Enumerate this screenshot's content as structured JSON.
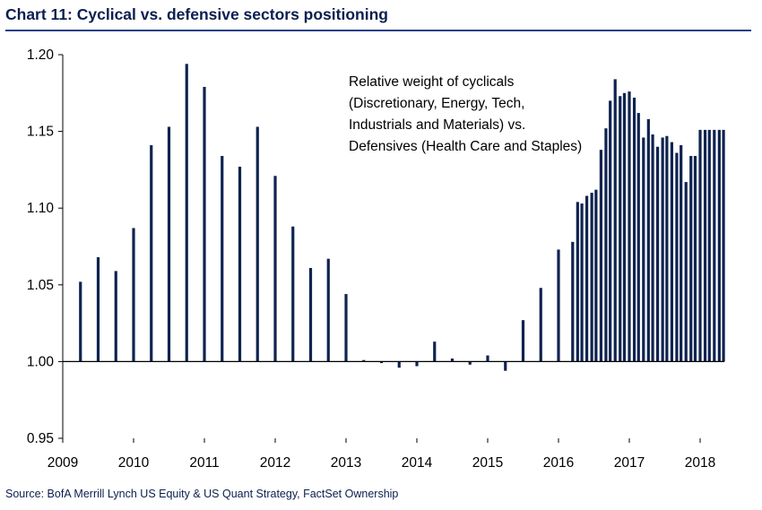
{
  "header": {
    "title": "Chart 11: Cyclical vs. defensive sectors positioning"
  },
  "footer": {
    "source": "Source:  BofA Merrill Lynch US Equity & US Quant Strategy, FactSet Ownership"
  },
  "colors": {
    "bar": "#0f2350",
    "title": "#0b1f4f",
    "rule": "#1f3f86"
  },
  "chart_data": {
    "type": "bar",
    "title": "Chart 11: Cyclical vs. defensive sectors positioning",
    "xlabel": "",
    "ylabel": "",
    "baseline": 1.0,
    "ylim": [
      0.95,
      1.2
    ],
    "xlim": [
      2009.0,
      2018.4
    ],
    "yticks": [
      "1.20",
      "1.15",
      "1.10",
      "1.05",
      "1.00",
      "0.95"
    ],
    "xticks": [
      "2009",
      "2010",
      "2011",
      "2012",
      "2013",
      "2014",
      "2015",
      "2016",
      "2017",
      "2018"
    ],
    "annotation": [
      "Relative weight of cyclicals",
      "(Discretionary, Energy, Tech,",
      "Industrials and Materials) vs.",
      "Defensives (Health Care and Staples)"
    ],
    "series": [
      {
        "name": "Relative weight of cyclicals vs. defensives",
        "x": [
          2009.25,
          2009.5,
          2009.75,
          2010.0,
          2010.25,
          2010.5,
          2010.75,
          2011.0,
          2011.25,
          2011.5,
          2011.75,
          2012.0,
          2012.25,
          2012.5,
          2012.75,
          2013.0,
          2013.25,
          2013.5,
          2013.75,
          2014.0,
          2014.25,
          2014.5,
          2014.75,
          2015.0,
          2015.25,
          2015.5,
          2015.75,
          2016.0,
          2016.2,
          2016.27,
          2016.33,
          2016.4,
          2016.47,
          2016.53,
          2016.6,
          2016.67,
          2016.73,
          2016.8,
          2016.87,
          2016.93,
          2017.0,
          2017.07,
          2017.13,
          2017.2,
          2017.27,
          2017.33,
          2017.4,
          2017.47,
          2017.53,
          2017.6,
          2017.67,
          2017.73,
          2017.8,
          2017.87,
          2017.93,
          2018.0,
          2018.07,
          2018.13,
          2018.2,
          2018.27,
          2018.33
        ],
        "values": [
          1.052,
          1.068,
          1.059,
          1.087,
          1.141,
          1.153,
          1.194,
          1.179,
          1.134,
          1.127,
          1.153,
          1.121,
          1.088,
          1.061,
          1.067,
          1.044,
          1.001,
          0.999,
          0.996,
          0.997,
          1.013,
          1.002,
          0.998,
          1.004,
          0.994,
          1.027,
          1.048,
          1.073,
          1.078,
          1.104,
          1.103,
          1.108,
          1.11,
          1.112,
          1.138,
          1.152,
          1.17,
          1.184,
          1.173,
          1.175,
          1.176,
          1.172,
          1.162,
          1.146,
          1.158,
          1.148,
          1.14,
          1.146,
          1.147,
          1.143,
          1.136,
          1.141,
          1.117,
          1.134,
          1.134,
          1.151,
          1.151,
          1.151,
          1.151,
          1.151,
          1.151
        ]
      }
    ]
  }
}
